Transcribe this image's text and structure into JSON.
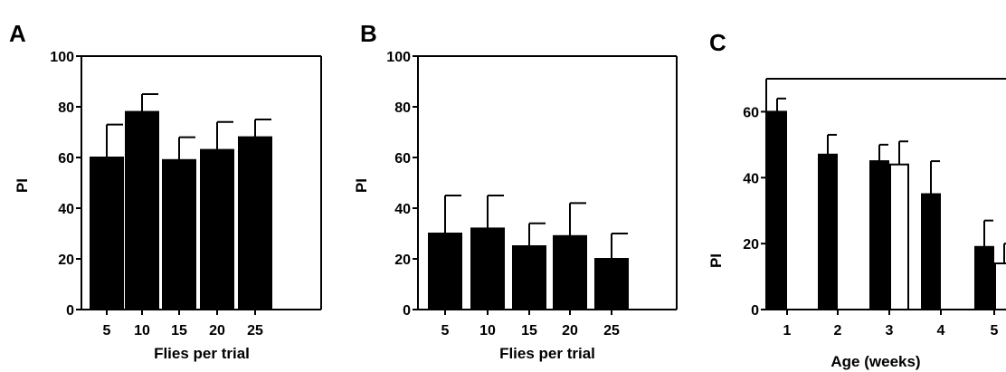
{
  "chart_data": [
    {
      "panel_label": "A",
      "type": "bar",
      "categories": [
        "5",
        "10",
        "15",
        "20",
        "25"
      ],
      "values": [
        60,
        78,
        59,
        63,
        68
      ],
      "errors": [
        13,
        7,
        9,
        11,
        7
      ],
      "xlabel": "Flies per trial",
      "ylabel": "PI",
      "ylim": [
        0,
        100
      ],
      "yticks": [
        "0",
        "20",
        "40",
        "60",
        "80",
        "100"
      ],
      "bar_color": "#000000"
    },
    {
      "panel_label": "B",
      "type": "bar",
      "categories": [
        "5",
        "10",
        "15",
        "20",
        "25"
      ],
      "values": [
        30,
        32,
        25,
        29,
        20
      ],
      "errors": [
        15,
        13,
        9,
        13,
        10
      ],
      "xlabel": "Flies per trial",
      "ylabel": "PI",
      "ylim": [
        0,
        100
      ],
      "yticks": [
        "0",
        "20",
        "40",
        "60",
        "80",
        "100"
      ],
      "bar_color": "#000000"
    },
    {
      "panel_label": "C",
      "type": "bar",
      "categories": [
        "1",
        "2",
        "3",
        "4",
        "5"
      ],
      "series": [
        {
          "values": [
            60,
            47,
            45,
            35,
            19
          ],
          "errors": [
            4,
            6,
            5,
            10,
            8
          ],
          "color": "#000000"
        },
        {
          "values": [
            null,
            null,
            44,
            null,
            14
          ],
          "errors": [
            null,
            null,
            7,
            null,
            6
          ],
          "color": "#ffffff"
        }
      ],
      "xlabel": "Age (weeks)",
      "ylabel": "PI",
      "ylim": [
        0,
        70
      ],
      "yticks": [
        "0",
        "20",
        "40",
        "60"
      ]
    }
  ]
}
